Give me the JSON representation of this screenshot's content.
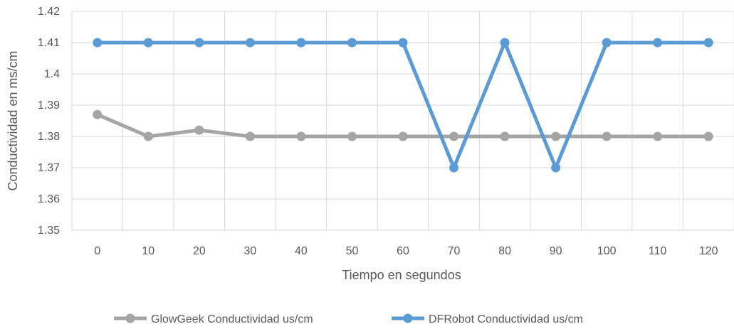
{
  "chart_data": {
    "type": "line",
    "xlabel": "Tiempo en segundos",
    "ylabel": "Conductividad en ms/cm",
    "ylim": [
      1.35,
      1.42
    ],
    "y_ticks": [
      "1.35",
      "1.36",
      "1.37",
      "1.38",
      "1.39",
      "1.4",
      "1.41",
      "1.42"
    ],
    "categories": [
      "0",
      "10",
      "20",
      "30",
      "40",
      "50",
      "60",
      "70",
      "80",
      "90",
      "100",
      "110",
      "120"
    ],
    "grid": true,
    "legend_position": "bottom",
    "series": [
      {
        "name": "GlowGeek Conductividad us/cm",
        "color": "#a5a5a5",
        "values": [
          1.387,
          1.38,
          1.382,
          1.38,
          1.38,
          1.38,
          1.38,
          1.38,
          1.38,
          1.38,
          1.38,
          1.38,
          1.38
        ]
      },
      {
        "name": "DFRobot Conductividad us/cm",
        "color": "#5b9bd5",
        "values": [
          1.41,
          1.41,
          1.41,
          1.41,
          1.41,
          1.41,
          1.41,
          1.37,
          1.41,
          1.37,
          1.41,
          1.41,
          1.41
        ]
      }
    ]
  }
}
